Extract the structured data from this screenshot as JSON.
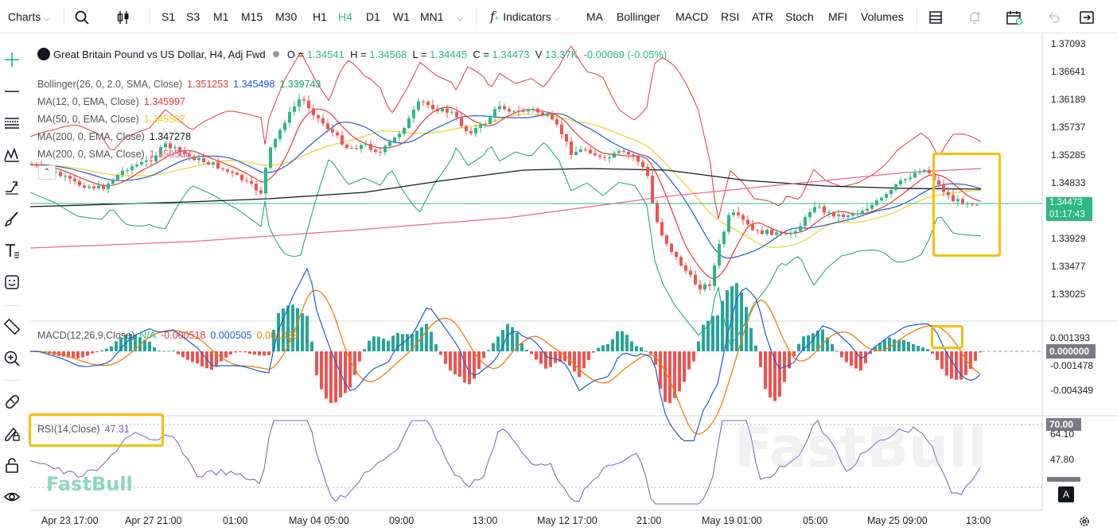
{
  "toolbar": {
    "charts_label": "Charts",
    "timeframes": [
      "S1",
      "S3",
      "M1",
      "M15",
      "M30",
      "H1",
      "H4",
      "D1",
      "W1",
      "MN1"
    ],
    "active_timeframe": "H4",
    "indicators_label": "Indicators",
    "indicator_buttons": [
      "MA",
      "Bollinger",
      "MACD",
      "RSI",
      "ATR",
      "Stoch",
      "MFI",
      "Volumes"
    ]
  },
  "legend": {
    "symbol": "Great Britain Pound vs US Dollar, H4, Adj Fwd",
    "o_label": "O =",
    "o_value": "1.34541",
    "h_label": "H =",
    "h_value": "1.34568",
    "l_label": "L =",
    "l_value": "1.34445",
    "c_label": "C =",
    "c_value": "1.34473",
    "v_label": "V",
    "v_value": "13.37K",
    "change": "-0.00069 (-0.05%)"
  },
  "indicators": [
    {
      "label": "Bollinger(26, 0, 2.0, SMA, Close)",
      "values": [
        {
          "v": "1.351253",
          "color": "#e53935"
        },
        {
          "v": "1.345498",
          "color": "#1e5bd8"
        },
        {
          "v": "1.339743",
          "color": "#16a06f"
        }
      ]
    },
    {
      "label": "MA(12, 0, EMA, Close)",
      "values": [
        {
          "v": "1.345997",
          "color": "#e53935"
        }
      ]
    },
    {
      "label": "MA(50, 0, EMA, Close)",
      "values": [
        {
          "v": "1.345507",
          "color": "#f0d020"
        }
      ]
    },
    {
      "label": "MA(200, 0, EMA, Close)",
      "values": [
        {
          "v": "1.347278",
          "color": "#131722"
        }
      ]
    },
    {
      "label": "MA(200, 0, SMA, Close)",
      "values": [
        {
          "v": "1.350508",
          "color": "#f06292"
        }
      ]
    }
  ],
  "price_axis": [
    "1.37093",
    "1.36641",
    "1.36189",
    "1.35737",
    "1.35285",
    "1.34833",
    "1.34473",
    "1.33929",
    "1.33477",
    "1.33025"
  ],
  "last_price": "1.34473",
  "countdown": "01:17:43",
  "macd": {
    "label": "MACD(12,26,9,Close)",
    "na": "N/A",
    "v1": "-0.000518",
    "v2": "0.000505",
    "v3": "0.001023",
    "axis": [
      "0.001393",
      "0.000000",
      "-0.001478",
      "-0.004349"
    ]
  },
  "rsi": {
    "label": "RSI(14,Close)",
    "value": "47.31",
    "axis": [
      "70.00",
      "64.10",
      "47.80"
    ],
    "badge": "A"
  },
  "time_axis": [
    "Apr 23 17:00",
    "Apr 27 21:00",
    "01:00",
    "May 04 05:00",
    "09:00",
    "13:00",
    "May 12 17:00",
    "21:00",
    "May 19 01:00",
    "05:00",
    "May 25 09:00",
    "13:00"
  ],
  "watermark": "FastBull",
  "colors": {
    "up": "#2db883",
    "down": "#ef5350",
    "accent": "#2db883",
    "highlight": "#f5c000"
  }
}
